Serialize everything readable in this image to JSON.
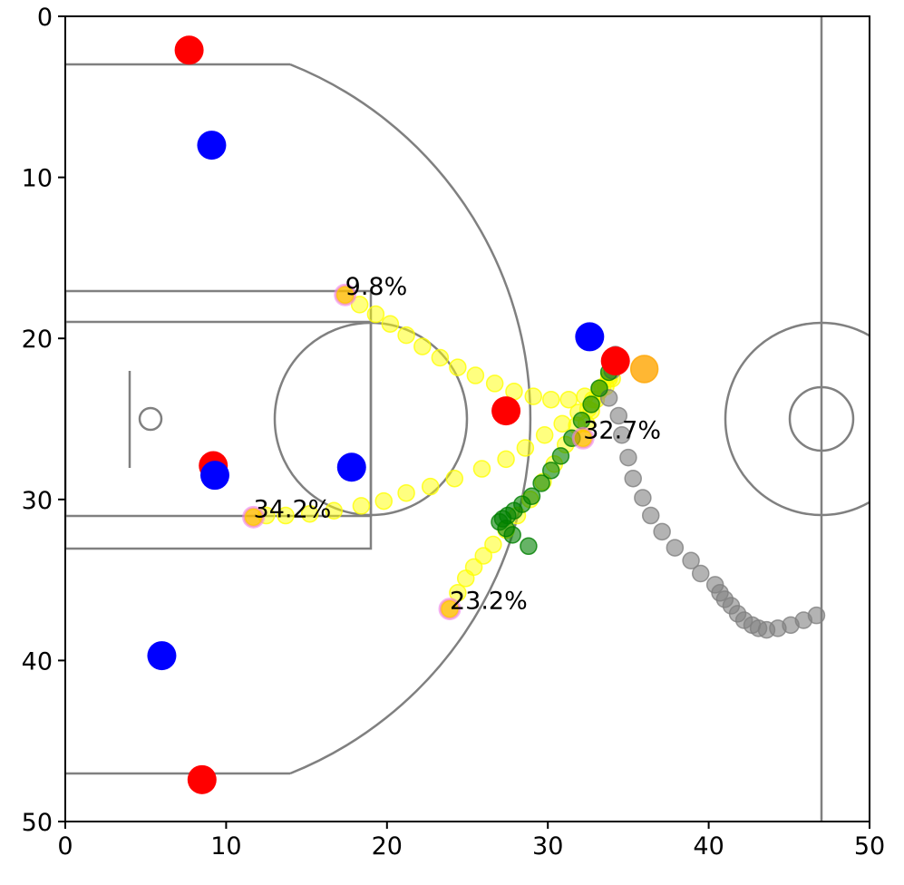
{
  "chart_data": {
    "type": "scatter",
    "xlim": [
      0,
      50
    ],
    "ylim": [
      0,
      50
    ],
    "y_inverted": true,
    "xticks": [
      0,
      10,
      20,
      30,
      40,
      50
    ],
    "yticks": [
      0,
      10,
      20,
      30,
      40,
      50
    ],
    "series": [
      {
        "color": "#ffff00",
        "alpha": 0.5,
        "size": 9,
        "x": [
          17.4,
          18.3,
          19.3,
          20.2,
          21.2,
          22.2,
          23.3,
          24.4,
          25.5,
          26.7,
          27.9,
          29.1,
          30.2,
          31.3,
          32.3,
          33.2,
          34
        ],
        "values": [
          17.3,
          17.9,
          18.5,
          19.1,
          19.8,
          20.5,
          21.2,
          21.8,
          22.3,
          22.8,
          23.3,
          23.6,
          23.8,
          23.8,
          23.6,
          23.2,
          22.5
        ]
      },
      {
        "color": "#ffff00",
        "alpha": 0.5,
        "size": 9,
        "x": [
          11.7,
          12.5,
          13.7,
          15.2,
          16.7,
          18.4,
          19.8,
          21.2,
          22.7,
          24.2,
          25.9,
          27.4,
          28.6,
          29.8,
          30.9,
          31.9,
          32.8,
          33.6
        ],
        "values": [
          31.1,
          31,
          31,
          30.9,
          30.7,
          30.4,
          30.1,
          29.6,
          29.2,
          28.7,
          28.1,
          27.5,
          26.8,
          26,
          25.3,
          24.6,
          23.8,
          23
        ]
      },
      {
        "color": "#ffff00",
        "alpha": 0.5,
        "size": 9,
        "x": [
          23.9,
          24.4,
          24.9,
          25.4,
          26,
          26.6,
          27.4,
          28.1,
          28.9,
          29.7,
          30.4,
          31.1,
          31.8,
          32.5,
          33.2,
          33.8
        ],
        "values": [
          36.8,
          35.8,
          34.9,
          34.2,
          33.5,
          32.8,
          31.9,
          31,
          30,
          28.9,
          27.8,
          26.6,
          25.4,
          24.4,
          23.3,
          22.5
        ]
      },
      {
        "color": "#ffff00",
        "alpha": 0.5,
        "size": 9,
        "x": [
          32.2,
          32.4,
          32.7,
          33,
          33.4,
          33.8
        ],
        "values": [
          26.2,
          25.3,
          24.5,
          23.8,
          23,
          22.3
        ]
      },
      {
        "color": "#808080",
        "alpha": 0.6,
        "size": 9,
        "x": [
          34.2,
          34,
          33.8,
          34.4,
          34.6,
          35,
          35.3,
          35.9,
          36.4,
          37.1,
          37.9,
          38.9,
          39.5,
          40.4,
          40.7,
          41,
          41.4,
          41.8,
          42.2,
          42.7,
          43.1,
          43.6,
          44.3,
          45.1,
          45.9,
          46.7
        ],
        "values": [
          21,
          22,
          23.7,
          24.8,
          26,
          27.4,
          28.7,
          29.9,
          31,
          32,
          33,
          33.8,
          34.6,
          35.3,
          35.8,
          36.2,
          36.6,
          37.1,
          37.5,
          37.8,
          38,
          38.1,
          38,
          37.8,
          37.5,
          37.2
        ]
      },
      {
        "color": "#008000",
        "alpha": 0.6,
        "size": 9,
        "x": [
          33.8,
          33.2,
          32.7,
          32.1,
          31.5,
          30.8,
          30.2,
          29.6,
          29,
          28.4,
          27.9,
          27.5,
          27.2,
          27,
          27.4,
          27.8,
          28.8
        ],
        "values": [
          22.1,
          23.1,
          24.1,
          25.1,
          26.2,
          27.3,
          28.2,
          29,
          29.8,
          30.3,
          30.7,
          31,
          31.2,
          31.4,
          31.8,
          32.2,
          32.9
        ]
      },
      {
        "color": "#ffa500",
        "alpha": 0.6,
        "size": 11,
        "stroke": "#ee82ee",
        "x": [
          17.4,
          11.7,
          23.9,
          32.2
        ],
        "values": [
          17.3,
          31.1,
          36.8,
          26.2
        ]
      },
      {
        "color": "#ff0000",
        "alpha": 1,
        "size": 16,
        "x": [
          7.7,
          9.2,
          27.4,
          34.2,
          8.5
        ],
        "values": [
          2.1,
          27.9,
          24.5,
          21.4,
          47.4
        ]
      },
      {
        "color": "#0000ff",
        "alpha": 1,
        "size": 16,
        "x": [
          9.1,
          9.3,
          17.8,
          32.6,
          6
        ],
        "values": [
          8,
          28.5,
          28,
          19.9,
          39.7
        ]
      },
      {
        "color": "#ffa500",
        "alpha": 0.8,
        "size": 15,
        "x": [
          36
        ],
        "values": [
          21.9
        ]
      }
    ],
    "annotations": [
      {
        "text": "9.8%",
        "x": 17.4,
        "y": 17.3
      },
      {
        "text": "34.2%",
        "x": 11.7,
        "y": 31.1
      },
      {
        "text": "23.2%",
        "x": 23.9,
        "y": 36.8
      },
      {
        "text": "32.7%",
        "x": 32.2,
        "y": 26.2
      }
    ]
  }
}
